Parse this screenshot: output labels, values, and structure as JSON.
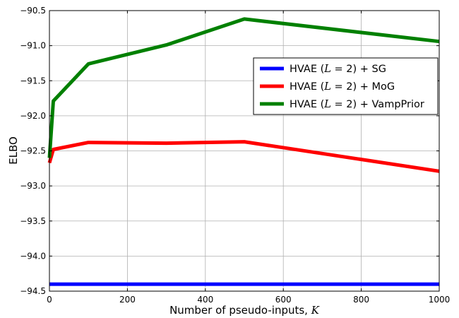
{
  "chart_data": {
    "type": "line",
    "xlabel": "Number of pseudo-inputs, ",
    "xlabel_var": "K",
    "ylabel": "ELBO",
    "xlim": [
      0,
      1000
    ],
    "ylim": [
      -94.5,
      -90.5
    ],
    "x_ticks": [
      0,
      200,
      400,
      600,
      800,
      1000
    ],
    "y_ticks": [
      -94.5,
      -94.0,
      -93.5,
      -93.0,
      -92.5,
      -92.0,
      -91.5,
      -91.0,
      -90.5
    ],
    "grid": true,
    "legend_position": "center-right",
    "series": [
      {
        "legend_prefix": "HVAE (",
        "legend_math": "L",
        "legend_eq": " = 2",
        "legend_suffix": ") + SG",
        "color": "#0000ff",
        "x": [
          0,
          1000
        ],
        "y": [
          -94.4,
          -94.4
        ]
      },
      {
        "legend_prefix": "HVAE (",
        "legend_math": "L",
        "legend_eq": " = 2",
        "legend_suffix": ") + MoG",
        "color": "#ff0000",
        "x": [
          0,
          10,
          100,
          300,
          500,
          1000
        ],
        "y": [
          -92.67,
          -92.48,
          -92.38,
          -92.39,
          -92.37,
          -92.79
        ]
      },
      {
        "legend_prefix": "HVAE (",
        "legend_math": "L",
        "legend_eq": " = 2",
        "legend_suffix": ") + VampPrior",
        "color": "#008000",
        "x": [
          0,
          10,
          100,
          300,
          500,
          1000
        ],
        "y": [
          -92.6,
          -91.79,
          -91.26,
          -90.99,
          -90.62,
          -90.94
        ]
      }
    ]
  }
}
